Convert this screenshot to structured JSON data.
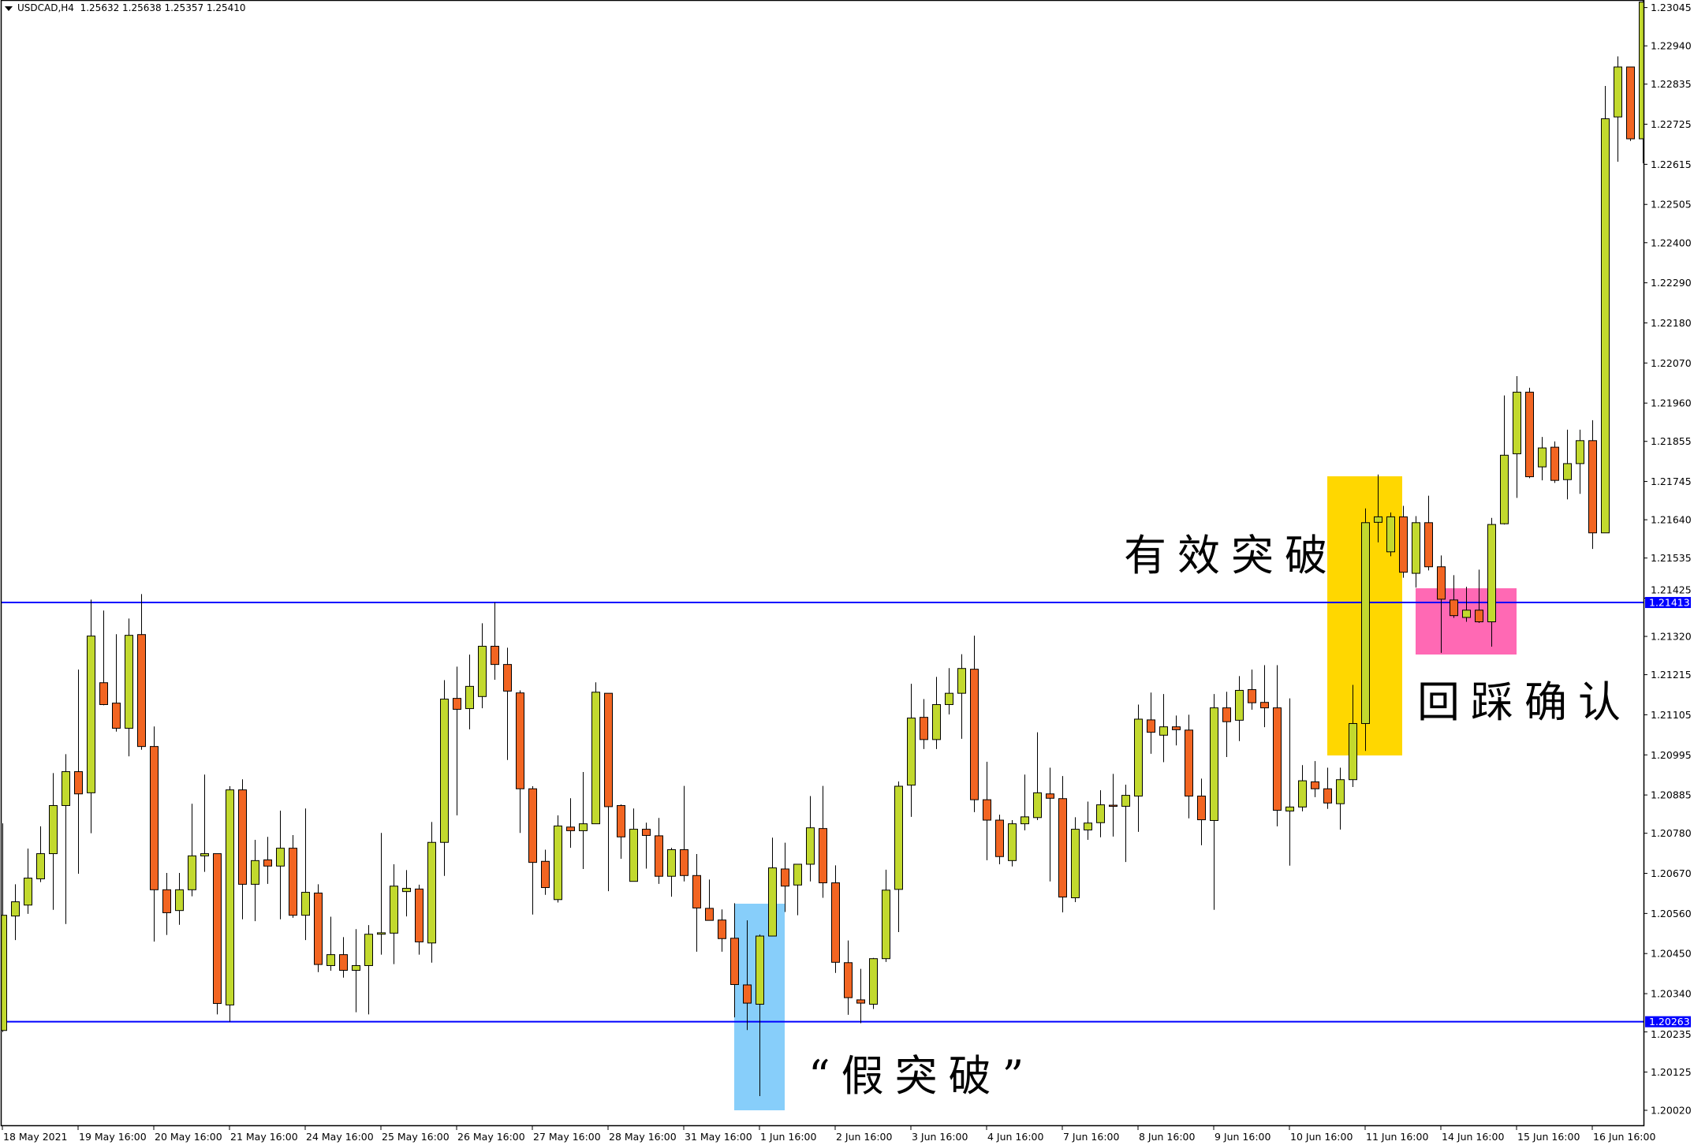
{
  "header": {
    "symbol_title": "USDCAD,H4",
    "ohlc_readout": "1.25632 1.25638 1.25357 1.25410"
  },
  "annotations": {
    "effective_breakout": "有效突破",
    "retest_confirm": "回踩确认",
    "false_breakout": "“假突破”"
  },
  "colors": {
    "bull": "#C2D92E",
    "bear": "#F26522",
    "level_line": "#0000FF",
    "false_break_box": "#87CEFA",
    "breakout_box": "#FFD700",
    "retest_box": "#FF69B4"
  },
  "chart_data": {
    "type": "candlestick",
    "symbol": "USDCAD",
    "timeframe": "H4",
    "ylim": [
      1.2002,
      1.23045
    ],
    "grid": false,
    "y_ticks": [
      "1.23045",
      "1.22940",
      "1.22835",
      "1.22725",
      "1.22615",
      "1.22505",
      "1.22400",
      "1.22290",
      "1.22180",
      "1.22070",
      "1.21960",
      "1.21855",
      "1.21745",
      "1.21640",
      "1.21535",
      "1.21425",
      "1.21320",
      "1.21215",
      "1.21105",
      "1.20995",
      "1.20885",
      "1.20780",
      "1.20670",
      "1.20560",
      "1.20450",
      "1.20340",
      "1.20235",
      "1.20125",
      "1.20020"
    ],
    "x_ticks": [
      "18 May 2021",
      "19 May 16:00",
      "20 May 16:00",
      "21 May 16:00",
      "24 May 16:00",
      "25 May 16:00",
      "26 May 16:00",
      "27 May 16:00",
      "28 May 16:00",
      "31 May 16:00",
      "1 Jun 16:00",
      "2 Jun 16:00",
      "3 Jun 16:00",
      "4 Jun 16:00",
      "7 Jun 16:00",
      "8 Jun 16:00",
      "9 Jun 16:00",
      "10 Jun 16:00",
      "11 Jun 16:00",
      "14 Jun 16:00",
      "15 Jun 16:00",
      "16 Jun 16:00"
    ],
    "levels": [
      {
        "price": 1.21413,
        "label": "1.21413"
      },
      {
        "price": 1.20263,
        "label": "1.20263"
      }
    ],
    "candles_ohlc": [
      [
        1.20239,
        1.20807,
        1.20235,
        1.20555
      ],
      [
        1.20553,
        1.2064,
        1.20487,
        1.20592
      ],
      [
        1.20583,
        1.20738,
        1.20559,
        1.20657
      ],
      [
        1.20655,
        1.20799,
        1.20646,
        1.20724
      ],
      [
        1.20724,
        1.20945,
        1.2057,
        1.20856
      ],
      [
        1.20856,
        1.20997,
        1.20531,
        1.20949
      ],
      [
        1.20949,
        1.21229,
        1.20669,
        1.20888
      ],
      [
        1.20891,
        1.21421,
        1.2078,
        1.21321
      ],
      [
        1.21193,
        1.21391,
        1.21131,
        1.21133
      ],
      [
        1.21137,
        1.21326,
        1.21059,
        1.21068
      ],
      [
        1.21068,
        1.21369,
        1.20991,
        1.21323
      ],
      [
        1.21325,
        1.21436,
        1.21009,
        1.21018
      ],
      [
        1.21018,
        1.21073,
        1.20483,
        1.20625
      ],
      [
        1.20625,
        1.20671,
        1.20501,
        1.20562
      ],
      [
        1.20568,
        1.20671,
        1.20529,
        1.20625
      ],
      [
        1.20625,
        1.20861,
        1.20607,
        1.20718
      ],
      [
        1.20718,
        1.20941,
        1.20674,
        1.20724
      ],
      [
        1.20724,
        1.20724,
        1.20283,
        1.20313
      ],
      [
        1.20309,
        1.20909,
        1.20263,
        1.20899
      ],
      [
        1.20899,
        1.20928,
        1.20544,
        1.2064
      ],
      [
        1.2064,
        1.20762,
        1.20539,
        1.20705
      ],
      [
        1.20707,
        1.2077,
        1.20641,
        1.2069
      ],
      [
        1.2069,
        1.20842,
        1.20544,
        1.20739
      ],
      [
        1.20739,
        1.20775,
        1.20548,
        1.20555
      ],
      [
        1.20555,
        1.20848,
        1.20487,
        1.20618
      ],
      [
        1.20616,
        1.2064,
        1.20399,
        1.2042
      ],
      [
        1.20417,
        1.20551,
        1.20403,
        1.20447
      ],
      [
        1.20447,
        1.20495,
        1.20384,
        1.20404
      ],
      [
        1.20404,
        1.20517,
        1.20289,
        1.20417
      ],
      [
        1.20417,
        1.20528,
        1.20283,
        1.20503
      ],
      [
        1.20503,
        1.20781,
        1.20447,
        1.20507
      ],
      [
        1.20506,
        1.20695,
        1.20421,
        1.20635
      ],
      [
        1.2062,
        1.20679,
        1.20552,
        1.20629
      ],
      [
        1.20627,
        1.20639,
        1.20447,
        1.20482
      ],
      [
        1.20479,
        1.20811,
        1.20425,
        1.20755
      ],
      [
        1.20755,
        1.212,
        1.20663,
        1.21148
      ],
      [
        1.2115,
        1.21237,
        1.20829,
        1.2112
      ],
      [
        1.21122,
        1.2127,
        1.21065,
        1.21183
      ],
      [
        1.21155,
        1.21356,
        1.21123,
        1.21293
      ],
      [
        1.21293,
        1.21413,
        1.21201,
        1.21243
      ],
      [
        1.21243,
        1.21289,
        1.20981,
        1.2117
      ],
      [
        1.21165,
        1.21172,
        1.20781,
        1.20902
      ],
      [
        1.20902,
        1.20909,
        1.20557,
        1.207
      ],
      [
        1.20703,
        1.20735,
        1.20611,
        1.20631
      ],
      [
        1.20598,
        1.20829,
        1.2059,
        1.208
      ],
      [
        1.20797,
        1.20876,
        1.2074,
        1.20787
      ],
      [
        1.20787,
        1.20948,
        1.20682,
        1.20806
      ],
      [
        1.20806,
        1.21194,
        1.20806,
        1.21167
      ],
      [
        1.21164,
        1.21164,
        1.20621,
        1.20853
      ],
      [
        1.20856,
        1.20859,
        1.2071,
        1.2077
      ],
      [
        1.20648,
        1.20848,
        1.20648,
        1.20791
      ],
      [
        1.20791,
        1.20809,
        1.20683,
        1.20774
      ],
      [
        1.20773,
        1.20822,
        1.20641,
        1.20662
      ],
      [
        1.20662,
        1.2074,
        1.20606,
        1.20735
      ],
      [
        1.20735,
        1.2091,
        1.20648,
        1.20664
      ],
      [
        1.20664,
        1.20723,
        1.20455,
        1.20575
      ],
      [
        1.20574,
        1.20653,
        1.20541,
        1.20541
      ],
      [
        1.20542,
        1.20571,
        1.20455,
        1.20491
      ],
      [
        1.20492,
        1.20588,
        1.20275,
        1.20365
      ],
      [
        1.20364,
        1.20541,
        1.2024,
        1.20314
      ],
      [
        1.20311,
        1.20502,
        1.20059,
        1.20498
      ],
      [
        1.20498,
        1.20768,
        1.20498,
        1.20685
      ],
      [
        1.20682,
        1.20754,
        1.20564,
        1.20635
      ],
      [
        1.20638,
        1.20695,
        1.20555,
        1.20695
      ],
      [
        1.20695,
        1.20882,
        1.20648,
        1.20795
      ],
      [
        1.20793,
        1.2091,
        1.20603,
        1.20644
      ],
      [
        1.20644,
        1.20692,
        1.20397,
        1.20426
      ],
      [
        1.20425,
        1.20486,
        1.20282,
        1.20329
      ],
      [
        1.20323,
        1.20408,
        1.20259,
        1.20314
      ],
      [
        1.20311,
        1.20438,
        1.20298,
        1.20436
      ],
      [
        1.20436,
        1.2068,
        1.20427,
        1.20624
      ],
      [
        1.20626,
        1.20922,
        1.20509,
        1.20909
      ],
      [
        1.20912,
        1.2119,
        1.20825,
        1.21096
      ],
      [
        1.21098,
        1.21148,
        1.21011,
        1.21037
      ],
      [
        1.21037,
        1.21209,
        1.21011,
        1.21133
      ],
      [
        1.21133,
        1.21233,
        1.21106,
        1.21164
      ],
      [
        1.21164,
        1.21271,
        1.21039,
        1.21232
      ],
      [
        1.2123,
        1.21322,
        1.20838,
        1.20872
      ],
      [
        1.20872,
        1.20976,
        1.20706,
        1.20816
      ],
      [
        1.20816,
        1.20831,
        1.20695,
        1.20716
      ],
      [
        1.20705,
        1.20816,
        1.20689,
        1.20806
      ],
      [
        1.20806,
        1.20941,
        1.20788,
        1.20825
      ],
      [
        1.20823,
        1.21057,
        1.20816,
        1.20891
      ],
      [
        1.20888,
        1.2096,
        1.20648,
        1.20876
      ],
      [
        1.20875,
        1.20937,
        1.20563,
        1.20605
      ],
      [
        1.20603,
        1.20824,
        1.20591,
        1.20791
      ],
      [
        1.20789,
        1.20867,
        1.20762,
        1.20808
      ],
      [
        1.20809,
        1.20898,
        1.20769,
        1.20858
      ],
      [
        1.20857,
        1.20943,
        1.20771,
        1.20854
      ],
      [
        1.20854,
        1.20913,
        1.20701,
        1.20884
      ],
      [
        1.20882,
        1.21133,
        1.20784,
        1.21093
      ],
      [
        1.21091,
        1.21166,
        1.20998,
        1.21057
      ],
      [
        1.21049,
        1.21162,
        1.20975,
        1.21072
      ],
      [
        1.21072,
        1.21103,
        1.21021,
        1.21064
      ],
      [
        1.21063,
        1.21105,
        1.20821,
        1.20882
      ],
      [
        1.20882,
        1.2093,
        1.20747,
        1.20817
      ],
      [
        1.20815,
        1.21162,
        1.2057,
        1.21124
      ],
      [
        1.21124,
        1.21168,
        1.20989,
        1.21086
      ],
      [
        1.2109,
        1.21211,
        1.21033,
        1.21172
      ],
      [
        1.21174,
        1.21229,
        1.21119,
        1.21138
      ],
      [
        1.21139,
        1.21241,
        1.21071,
        1.21124
      ],
      [
        1.21124,
        1.21241,
        1.20799,
        1.20843
      ],
      [
        1.20841,
        1.2115,
        1.20691,
        1.20852
      ],
      [
        1.20852,
        1.20967,
        1.2084,
        1.20924
      ],
      [
        1.20921,
        1.20978,
        1.20879,
        1.20902
      ],
      [
        1.20902,
        1.2096,
        1.20847,
        1.20863
      ],
      [
        1.20861,
        1.2096,
        1.2079,
        1.20927
      ],
      [
        1.20927,
        1.21187,
        1.20907,
        1.21081
      ],
      [
        1.21081,
        1.21671,
        1.21006,
        1.21632
      ],
      [
        1.21633,
        1.21764,
        1.21578,
        1.21648
      ],
      [
        1.21552,
        1.2166,
        1.2154,
        1.21648
      ],
      [
        1.21648,
        1.21678,
        1.21481,
        1.21496
      ],
      [
        1.21493,
        1.2165,
        1.21454,
        1.21632
      ],
      [
        1.21632,
        1.21706,
        1.21501,
        1.21511
      ],
      [
        1.21511,
        1.21542,
        1.21275,
        1.21422
      ],
      [
        1.2142,
        1.21488,
        1.21371,
        1.21377
      ],
      [
        1.21372,
        1.21456,
        1.2136,
        1.21392
      ],
      [
        1.21392,
        1.21503,
        1.21357,
        1.2136
      ],
      [
        1.2136,
        1.21645,
        1.21292,
        1.21627
      ],
      [
        1.21629,
        1.21981,
        1.21627,
        1.21817
      ],
      [
        1.21821,
        1.22034,
        1.217,
        1.2199
      ],
      [
        1.2199,
        1.22002,
        1.21754,
        1.21758
      ],
      [
        1.21785,
        1.21867,
        1.21748,
        1.21837
      ],
      [
        1.21839,
        1.21855,
        1.21741,
        1.21748
      ],
      [
        1.2175,
        1.21887,
        1.21696,
        1.21794
      ],
      [
        1.21794,
        1.21887,
        1.21711,
        1.21857
      ],
      [
        1.21857,
        1.21913,
        1.2156,
        1.21604
      ],
      [
        1.21604,
        1.2283,
        1.21604,
        1.2274
      ],
      [
        1.22745,
        1.22911,
        1.22622,
        1.22882
      ],
      [
        1.22882,
        1.22882,
        1.22679,
        1.22685
      ],
      [
        1.22685,
        1.2308,
        1.22618,
        1.2306
      ]
    ]
  }
}
